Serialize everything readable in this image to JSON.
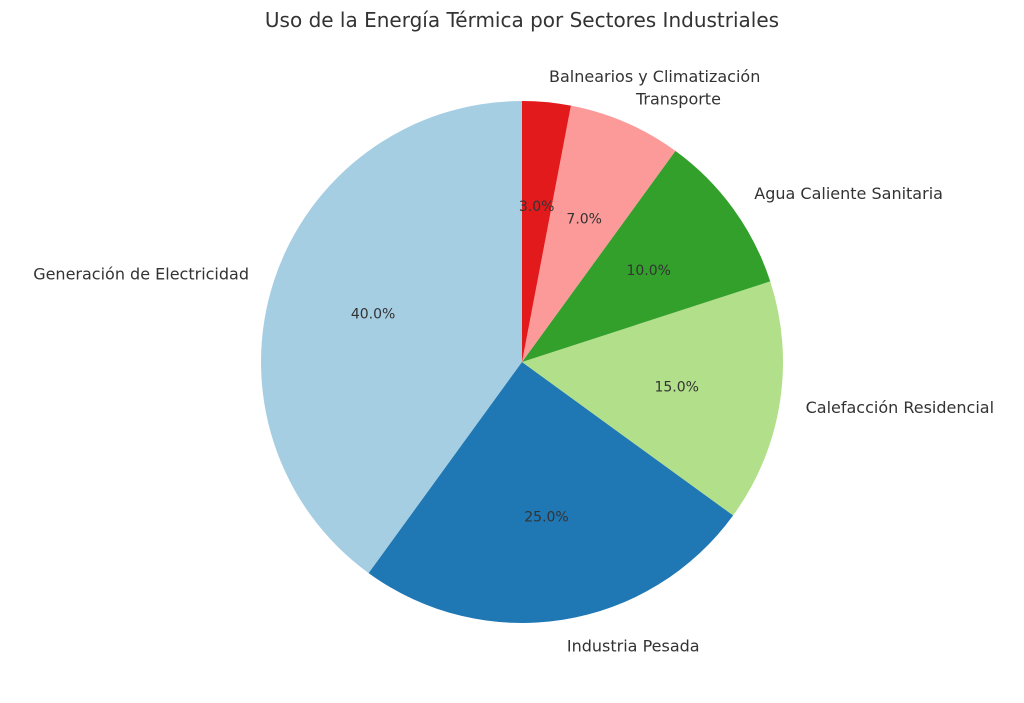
{
  "chart_data": {
    "type": "pie",
    "title": "Uso de la Energía Térmica por Sectores Industriales",
    "start_angle_deg": 90,
    "direction": "counterclockwise",
    "slices": [
      {
        "label": "Generación de Electricidad",
        "value": 40.0,
        "pct_label": "40.0%",
        "color": "#a6cee3"
      },
      {
        "label": "Industria Pesada",
        "value": 25.0,
        "pct_label": "25.0%",
        "color": "#1f78b4"
      },
      {
        "label": "Calefacción Residencial",
        "value": 15.0,
        "pct_label": "15.0%",
        "color": "#b2df8a"
      },
      {
        "label": "Agua Caliente Sanitaria",
        "value": 10.0,
        "pct_label": "10.0%",
        "color": "#33a02c"
      },
      {
        "label": "Transporte",
        "value": 7.0,
        "pct_label": "7.0%",
        "color": "#fb9a99"
      },
      {
        "label": "Balnearios y Climatización",
        "value": 3.0,
        "pct_label": "3.0%",
        "color": "#e31a1c"
      }
    ]
  }
}
